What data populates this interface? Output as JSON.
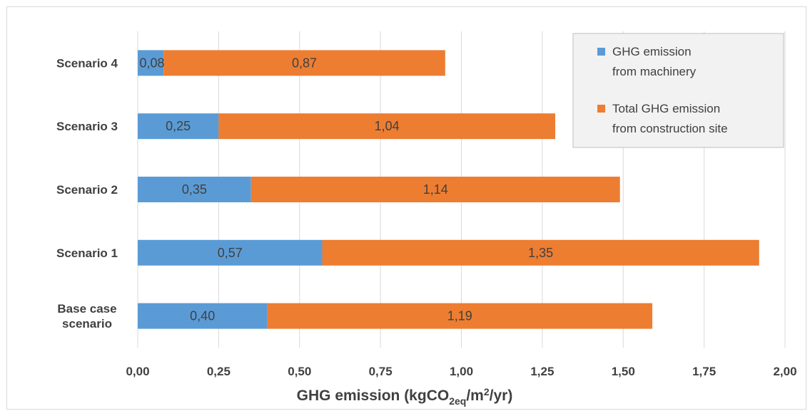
{
  "chart_data": {
    "type": "bar",
    "orientation": "horizontal",
    "stacked": true,
    "categories": [
      "Base case scenario",
      "Scenario 1",
      "Scenario 2",
      "Scenario 3",
      "Scenario 4"
    ],
    "category_label_lines": [
      [
        "Base case",
        "scenario"
      ],
      [
        "Scenario 1"
      ],
      [
        "Scenario 2"
      ],
      [
        "Scenario 3"
      ],
      [
        "Scenario 4"
      ]
    ],
    "series": [
      {
        "name": "GHG emission from machinery",
        "legend_lines": [
          "GHG emission",
          "from machinery"
        ],
        "values": [
          0.4,
          0.57,
          0.35,
          0.25,
          0.08
        ],
        "labels": [
          "0,40",
          "0,57",
          "0,35",
          "0,25",
          "0,08"
        ],
        "color": "#5b9bd5"
      },
      {
        "name": "Total GHG emission from construction site",
        "legend_lines": [
          "Total GHG emission",
          "from construction site"
        ],
        "values": [
          1.19,
          1.35,
          1.14,
          1.04,
          0.87
        ],
        "labels": [
          "1,19",
          "1,35",
          "1,14",
          "1,04",
          "0,87"
        ],
        "color": "#ed7d31"
      }
    ],
    "xlim": [
      0,
      2.0
    ],
    "xticks": [
      0,
      0.25,
      0.5,
      0.75,
      1.0,
      1.25,
      1.5,
      1.75,
      2.0
    ],
    "xtick_labels": [
      "0,00",
      "0,25",
      "0,50",
      "0,75",
      "1,00",
      "1,25",
      "1,50",
      "1,75",
      "2,00"
    ],
    "xlabel": {
      "main": "GHG emission (kgCO",
      "sub": "2eq",
      "mid": "/m",
      "sup": "2",
      "end": "/yr)"
    },
    "grid": "vertical",
    "legend_position": "top-right"
  }
}
